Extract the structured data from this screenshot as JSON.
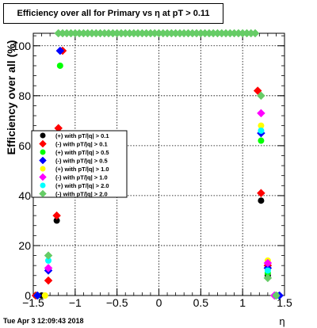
{
  "chart_data": {
    "type": "scatter",
    "title": "Efficiency over all for Primary vs   η at pT > 0.11",
    "xlabel": "η",
    "ylabel": "Efficiency over all (%)",
    "xlim": [
      -1.5,
      1.5
    ],
    "ylim": [
      0,
      105
    ],
    "x_ticks": [
      -1.5,
      -1,
      -0.5,
      0,
      0.5,
      1,
      1.5
    ],
    "x_tick_labels": [
      "−1.5",
      "−1",
      "−0.5",
      "0",
      "0.5",
      "1",
      "1.5"
    ],
    "y_ticks": [
      0,
      20,
      40,
      60,
      80,
      100
    ],
    "y_tick_labels": [
      "0",
      "20",
      "40",
      "60",
      "80",
      "100"
    ],
    "grid": true,
    "legend_position": "middle-left",
    "series": [
      {
        "name": "(+) with pT/|q| > 0.1",
        "color": "#000000",
        "points": [
          [
            -1.47,
            0
          ],
          [
            -1.4,
            0
          ],
          [
            -1.22,
            30
          ],
          [
            1.22,
            38
          ],
          [
            1.3,
            8
          ],
          [
            1.42,
            0
          ]
        ]
      },
      {
        "name": "(-) with pT/|q| > 0.1",
        "color": "#ff0000",
        "points": [
          [
            -1.47,
            0
          ],
          [
            -1.32,
            6
          ],
          [
            -1.22,
            32
          ],
          [
            -1.2,
            67
          ],
          [
            -1.15,
            98
          ],
          [
            1.22,
            41
          ],
          [
            1.18,
            82
          ],
          [
            1.3,
            12
          ],
          [
            1.4,
            0
          ]
        ]
      },
      {
        "name": "(+) with pT/|q| > 0.5",
        "color": "#00ff00",
        "points": [
          [
            -1.45,
            0
          ],
          [
            -1.22,
            55
          ],
          [
            -1.18,
            92
          ],
          [
            1.22,
            62
          ],
          [
            1.3,
            9
          ],
          [
            1.42,
            0
          ]
        ]
      },
      {
        "name": "(-) with pT/|q| > 0.5",
        "color": "#0000ff",
        "points": [
          [
            -1.45,
            0
          ],
          [
            -1.32,
            10
          ],
          [
            -1.22,
            50
          ],
          [
            -1.18,
            98
          ],
          [
            1.22,
            65
          ],
          [
            1.3,
            11
          ],
          [
            1.44,
            0
          ]
        ]
      },
      {
        "name": "(+) with pT/|q| > 1.0",
        "color": "#ffff00",
        "points": [
          [
            -1.36,
            0
          ],
          [
            -1.22,
            52
          ],
          [
            1.22,
            68
          ],
          [
            1.3,
            14
          ],
          [
            1.4,
            0
          ]
        ]
      },
      {
        "name": "(-) with pT/|q| > 1.0",
        "color": "#ff00ff",
        "points": [
          [
            -1.32,
            11
          ],
          [
            -1.22,
            58
          ],
          [
            1.22,
            73
          ],
          [
            1.3,
            13
          ],
          [
            1.38,
            0
          ]
        ]
      },
      {
        "name": "(+) with pT/|q| > 2.0",
        "color": "#00ffff",
        "points": [
          [
            -1.32,
            14
          ],
          [
            -1.22,
            42
          ],
          [
            1.22,
            66
          ],
          [
            1.3,
            10
          ],
          [
            1.4,
            0
          ]
        ]
      },
      {
        "name": "(-) with pT/|q| > 2.0",
        "color": "#66cc66",
        "points": [
          [
            -1.32,
            16
          ],
          [
            -1.22,
            60
          ],
          [
            -1.2,
            105
          ],
          [
            -1.15,
            105
          ],
          [
            -1.1,
            105
          ],
          [
            -1.05,
            105
          ],
          [
            -1.0,
            105
          ],
          [
            -0.95,
            105
          ],
          [
            -0.9,
            105
          ],
          [
            -0.85,
            105
          ],
          [
            -0.8,
            105
          ],
          [
            -0.75,
            105
          ],
          [
            -0.7,
            105
          ],
          [
            -0.65,
            105
          ],
          [
            -0.6,
            105
          ],
          [
            -0.55,
            105
          ],
          [
            -0.5,
            105
          ],
          [
            -0.45,
            105
          ],
          [
            -0.4,
            105
          ],
          [
            -0.35,
            105
          ],
          [
            -0.3,
            105
          ],
          [
            -0.25,
            105
          ],
          [
            -0.2,
            105
          ],
          [
            -0.15,
            105
          ],
          [
            -0.1,
            105
          ],
          [
            -0.05,
            105
          ],
          [
            0.0,
            105
          ],
          [
            0.05,
            105
          ],
          [
            0.1,
            105
          ],
          [
            0.15,
            105
          ],
          [
            0.2,
            105
          ],
          [
            0.25,
            105
          ],
          [
            0.3,
            105
          ],
          [
            0.35,
            105
          ],
          [
            0.4,
            105
          ],
          [
            0.45,
            105
          ],
          [
            0.5,
            105
          ],
          [
            0.55,
            105
          ],
          [
            0.6,
            105
          ],
          [
            0.65,
            105
          ],
          [
            0.7,
            105
          ],
          [
            0.75,
            105
          ],
          [
            0.8,
            105
          ],
          [
            0.85,
            105
          ],
          [
            0.9,
            105
          ],
          [
            0.95,
            105
          ],
          [
            1.0,
            105
          ],
          [
            1.05,
            105
          ],
          [
            1.1,
            105
          ],
          [
            1.15,
            105
          ],
          [
            1.22,
            80
          ],
          [
            1.3,
            7
          ],
          [
            1.4,
            0
          ]
        ]
      }
    ]
  },
  "footer": {
    "date": "Tue Apr  3 12:09:43 2018"
  }
}
